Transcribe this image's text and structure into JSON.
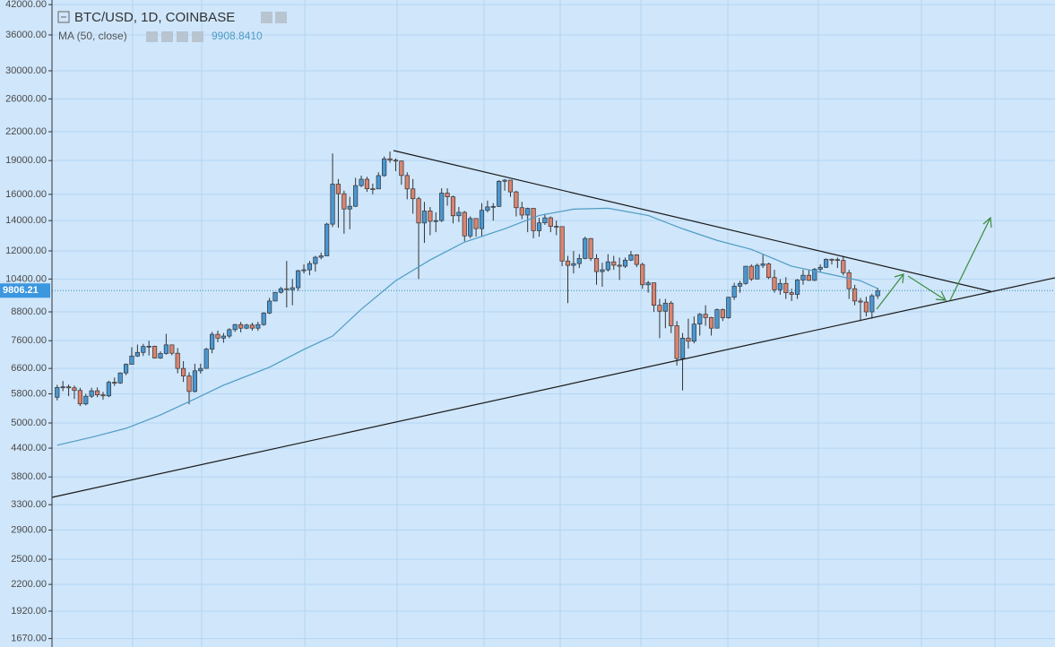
{
  "chart_data": {
    "type": "candlestick",
    "title": "BTC/USD, 1D, COINBASE",
    "log_scale": true,
    "grid": true,
    "up_color": "#4a97d2",
    "down_color": "#d98470",
    "xlim": [
      -0.9,
      173.9
    ],
    "ylim": [
      1600,
      43000
    ],
    "yticks": [
      {
        "value": 42000,
        "label": "42000.00"
      },
      {
        "value": 36000,
        "label": "36000.00"
      },
      {
        "value": 30000,
        "label": "30000.00"
      },
      {
        "value": 26000,
        "label": "26000.00"
      },
      {
        "value": 22000,
        "label": "22000.00"
      },
      {
        "value": 19000,
        "label": "19000.00"
      },
      {
        "value": 16000,
        "label": "16000.00"
      },
      {
        "value": 14000,
        "label": "14000.00"
      },
      {
        "value": 12000,
        "label": "12000.00"
      },
      {
        "value": 10400,
        "label": "10400.00"
      },
      {
        "value": 8800,
        "label": "8800.00"
      },
      {
        "value": 7600,
        "label": "7600.00"
      },
      {
        "value": 6600,
        "label": "6600.00"
      },
      {
        "value": 5800,
        "label": "5800.00"
      },
      {
        "value": 5000,
        "label": "5000.00"
      },
      {
        "value": 4400,
        "label": "4400.00"
      },
      {
        "value": 3800,
        "label": "3800.00"
      },
      {
        "value": 3300,
        "label": "3300.00"
      },
      {
        "value": 2900,
        "label": "2900.00"
      },
      {
        "value": 2500,
        "label": "2500.00"
      },
      {
        "value": 2200,
        "label": "2200.00"
      },
      {
        "value": 1920,
        "label": "1920.00"
      },
      {
        "value": 1670,
        "label": "1670.00"
      }
    ],
    "open": [
      5700,
      5990,
      6010,
      5980,
      5900,
      5510,
      5730,
      5890,
      5770,
      5740,
      6150,
      6130,
      6450,
      6740,
      7030,
      7160,
      7380,
      7390,
      6960,
      7120,
      7440,
      7130,
      6600,
      6350,
      5870,
      6520,
      6600,
      7280,
      7850,
      7700,
      7780,
      8040,
      8250,
      8100,
      8230,
      8100,
      8250,
      8750,
      9300,
      9720,
      9900,
      9850,
      9950,
      10850,
      10900,
      11250,
      11620,
      11700,
      13750,
      16850,
      16050,
      14850,
      15060,
      16730,
      17280,
      16460,
      16450,
      17600,
      19170,
      19040,
      18950,
      17610,
      16450,
      15650,
      13830,
      14700,
      13950,
      14000,
      16100,
      15800,
      14350,
      14600,
      12950,
      14150,
      13440,
      14750,
      15010,
      15050,
      17100,
      17200,
      16200,
      14950,
      14400,
      14900,
      13300,
      13840,
      14200,
      13600,
      13580,
      11400,
      11150,
      11250,
      11550,
      12780,
      11550,
      10800,
      10900,
      11350,
      11160,
      11100,
      11450,
      11760,
      11200,
      10100,
      10200,
      9100,
      8830,
      9200,
      8200,
      6940,
      7700,
      7580,
      8270,
      8690,
      8550,
      8100,
      8900,
      8540,
      9480,
      10030,
      10170,
      11100,
      10400,
      11150,
      11230,
      10480,
      9850,
      10170,
      9700,
      9620,
      10350,
      10600,
      10330,
      10930,
      11040,
      11500,
      11480,
      11430,
      10740,
      9900,
      9300,
      9250,
      8800,
      9550
    ],
    "high": [
      6070,
      6190,
      6080,
      6050,
      5980,
      5800,
      5980,
      5990,
      5860,
      6200,
      6300,
      6470,
      6770,
      7350,
      7450,
      7480,
      7600,
      7410,
      7200,
      7870,
      7450,
      7320,
      6850,
      6470,
      6760,
      6760,
      7330,
      7950,
      8000,
      7900,
      8100,
      8280,
      8360,
      8280,
      8330,
      8370,
      8790,
      9450,
      9730,
      9990,
      11400,
      10400,
      10900,
      11200,
      11400,
      11700,
      11900,
      13840,
      19700,
      17300,
      16300,
      15800,
      17400,
      17600,
      17500,
      16900,
      17900,
      19400,
      19900,
      19200,
      19000,
      17900,
      17300,
      15800,
      15400,
      15000,
      14600,
      16500,
      16500,
      15900,
      15000,
      14700,
      14300,
      14150,
      15300,
      15500,
      15300,
      17200,
      17300,
      17200,
      16300,
      15400,
      14950,
      14900,
      14200,
      14500,
      14300,
      14000,
      13600,
      11700,
      12000,
      11800,
      12900,
      12800,
      11800,
      11300,
      11800,
      11700,
      11600,
      11600,
      12000,
      11800,
      11300,
      10300,
      10200,
      9400,
      9400,
      9300,
      8400,
      7900,
      8500,
      8600,
      8750,
      9100,
      8580,
      8950,
      8950,
      9500,
      10200,
      10300,
      11100,
      11200,
      11250,
      11800,
      11300,
      10900,
      10400,
      10500,
      9900,
      10400,
      10900,
      10900,
      11000,
      11200,
      11550,
      11550,
      11600,
      11700,
      10900,
      10100,
      9450,
      9500,
      9650,
      9950
    ],
    "low": [
      5610,
      5880,
      5730,
      5650,
      5450,
      5470,
      5680,
      5700,
      5630,
      5700,
      6040,
      6100,
      6380,
      6740,
      7000,
      7030,
      7050,
      6940,
      6930,
      7080,
      7060,
      6440,
      6160,
      5500,
      5840,
      6430,
      6590,
      7130,
      7540,
      7520,
      7700,
      7950,
      7930,
      8060,
      8000,
      7990,
      8200,
      8700,
      9280,
      9660,
      9000,
      9100,
      9800,
      10700,
      10600,
      10800,
      11500,
      11700,
      13550,
      13500,
      13100,
      13400,
      15000,
      16600,
      16200,
      16000,
      16450,
      17500,
      18800,
      18000,
      16800,
      15600,
      14500,
      10400,
      12500,
      13000,
      13200,
      13900,
      15100,
      13800,
      13900,
      12600,
      12800,
      12900,
      12900,
      14600,
      14000,
      15000,
      16300,
      15800,
      14300,
      14100,
      13200,
      12800,
      12900,
      13700,
      13200,
      13000,
      11100,
      9200,
      10700,
      11000,
      11500,
      11400,
      10100,
      10000,
      10800,
      10900,
      10350,
      11000,
      11400,
      11050,
      9900,
      9700,
      8800,
      7700,
      8100,
      7900,
      6700,
      5900,
      7300,
      7500,
      7800,
      8200,
      7800,
      8100,
      8400,
      8500,
      9350,
      9700,
      10100,
      10300,
      10400,
      11000,
      10400,
      9700,
      9600,
      9400,
      9300,
      9400,
      10100,
      10300,
      10300,
      10800,
      11000,
      11200,
      11000,
      10600,
      9400,
      9100,
      8400,
      8600,
      8500,
      9400
    ],
    "close": [
      5990,
      6010,
      5980,
      5900,
      5510,
      5730,
      5890,
      5770,
      5740,
      6150,
      6130,
      6450,
      6740,
      7030,
      7160,
      7380,
      7390,
      6960,
      7120,
      7440,
      7130,
      6600,
      6350,
      5870,
      6520,
      6600,
      7280,
      7850,
      7700,
      7780,
      8040,
      8250,
      8100,
      8230,
      8100,
      8250,
      8750,
      9300,
      9720,
      9900,
      9850,
      9950,
      10850,
      10900,
      11250,
      11620,
      11700,
      13750,
      16850,
      16050,
      14850,
      15060,
      16730,
      17280,
      16460,
      16450,
      17600,
      19170,
      19040,
      18950,
      17610,
      16450,
      15650,
      13830,
      14700,
      13950,
      14000,
      16100,
      15800,
      14350,
      14600,
      12950,
      14150,
      13440,
      14750,
      15010,
      15050,
      17100,
      17200,
      16200,
      14950,
      14400,
      14900,
      13300,
      13840,
      14200,
      13600,
      13580,
      11400,
      11150,
      11250,
      11550,
      12780,
      11550,
      10800,
      10900,
      11350,
      11160,
      11100,
      11450,
      11760,
      11200,
      10100,
      10200,
      9100,
      8830,
      9200,
      8200,
      6940,
      7700,
      7580,
      8270,
      8690,
      8550,
      8100,
      8900,
      8540,
      9480,
      10030,
      10170,
      11100,
      10400,
      11150,
      11230,
      10480,
      9850,
      10170,
      9700,
      9620,
      10350,
      10600,
      10330,
      10930,
      11040,
      11500,
      11480,
      11430,
      10740,
      9900,
      9300,
      9250,
      8800,
      9550,
      9806.21
    ],
    "indicator": {
      "name": "MA (50, close)",
      "color": "#4f9cc4",
      "value_label": "9908.8410",
      "x": [
        0,
        6,
        12,
        18,
        24,
        29,
        37,
        43,
        48,
        53,
        59,
        65,
        71,
        78,
        84,
        90,
        96,
        103,
        109,
        115,
        121,
        128,
        134,
        140,
        143
      ],
      "values": [
        4466,
        4650,
        4866,
        5210,
        5650,
        6060,
        6640,
        7270,
        7780,
        8920,
        10310,
        11460,
        12550,
        13430,
        14370,
        14840,
        14910,
        14370,
        13430,
        12660,
        12090,
        11100,
        10700,
        10310,
        9908.841
      ]
    }
  }
}
